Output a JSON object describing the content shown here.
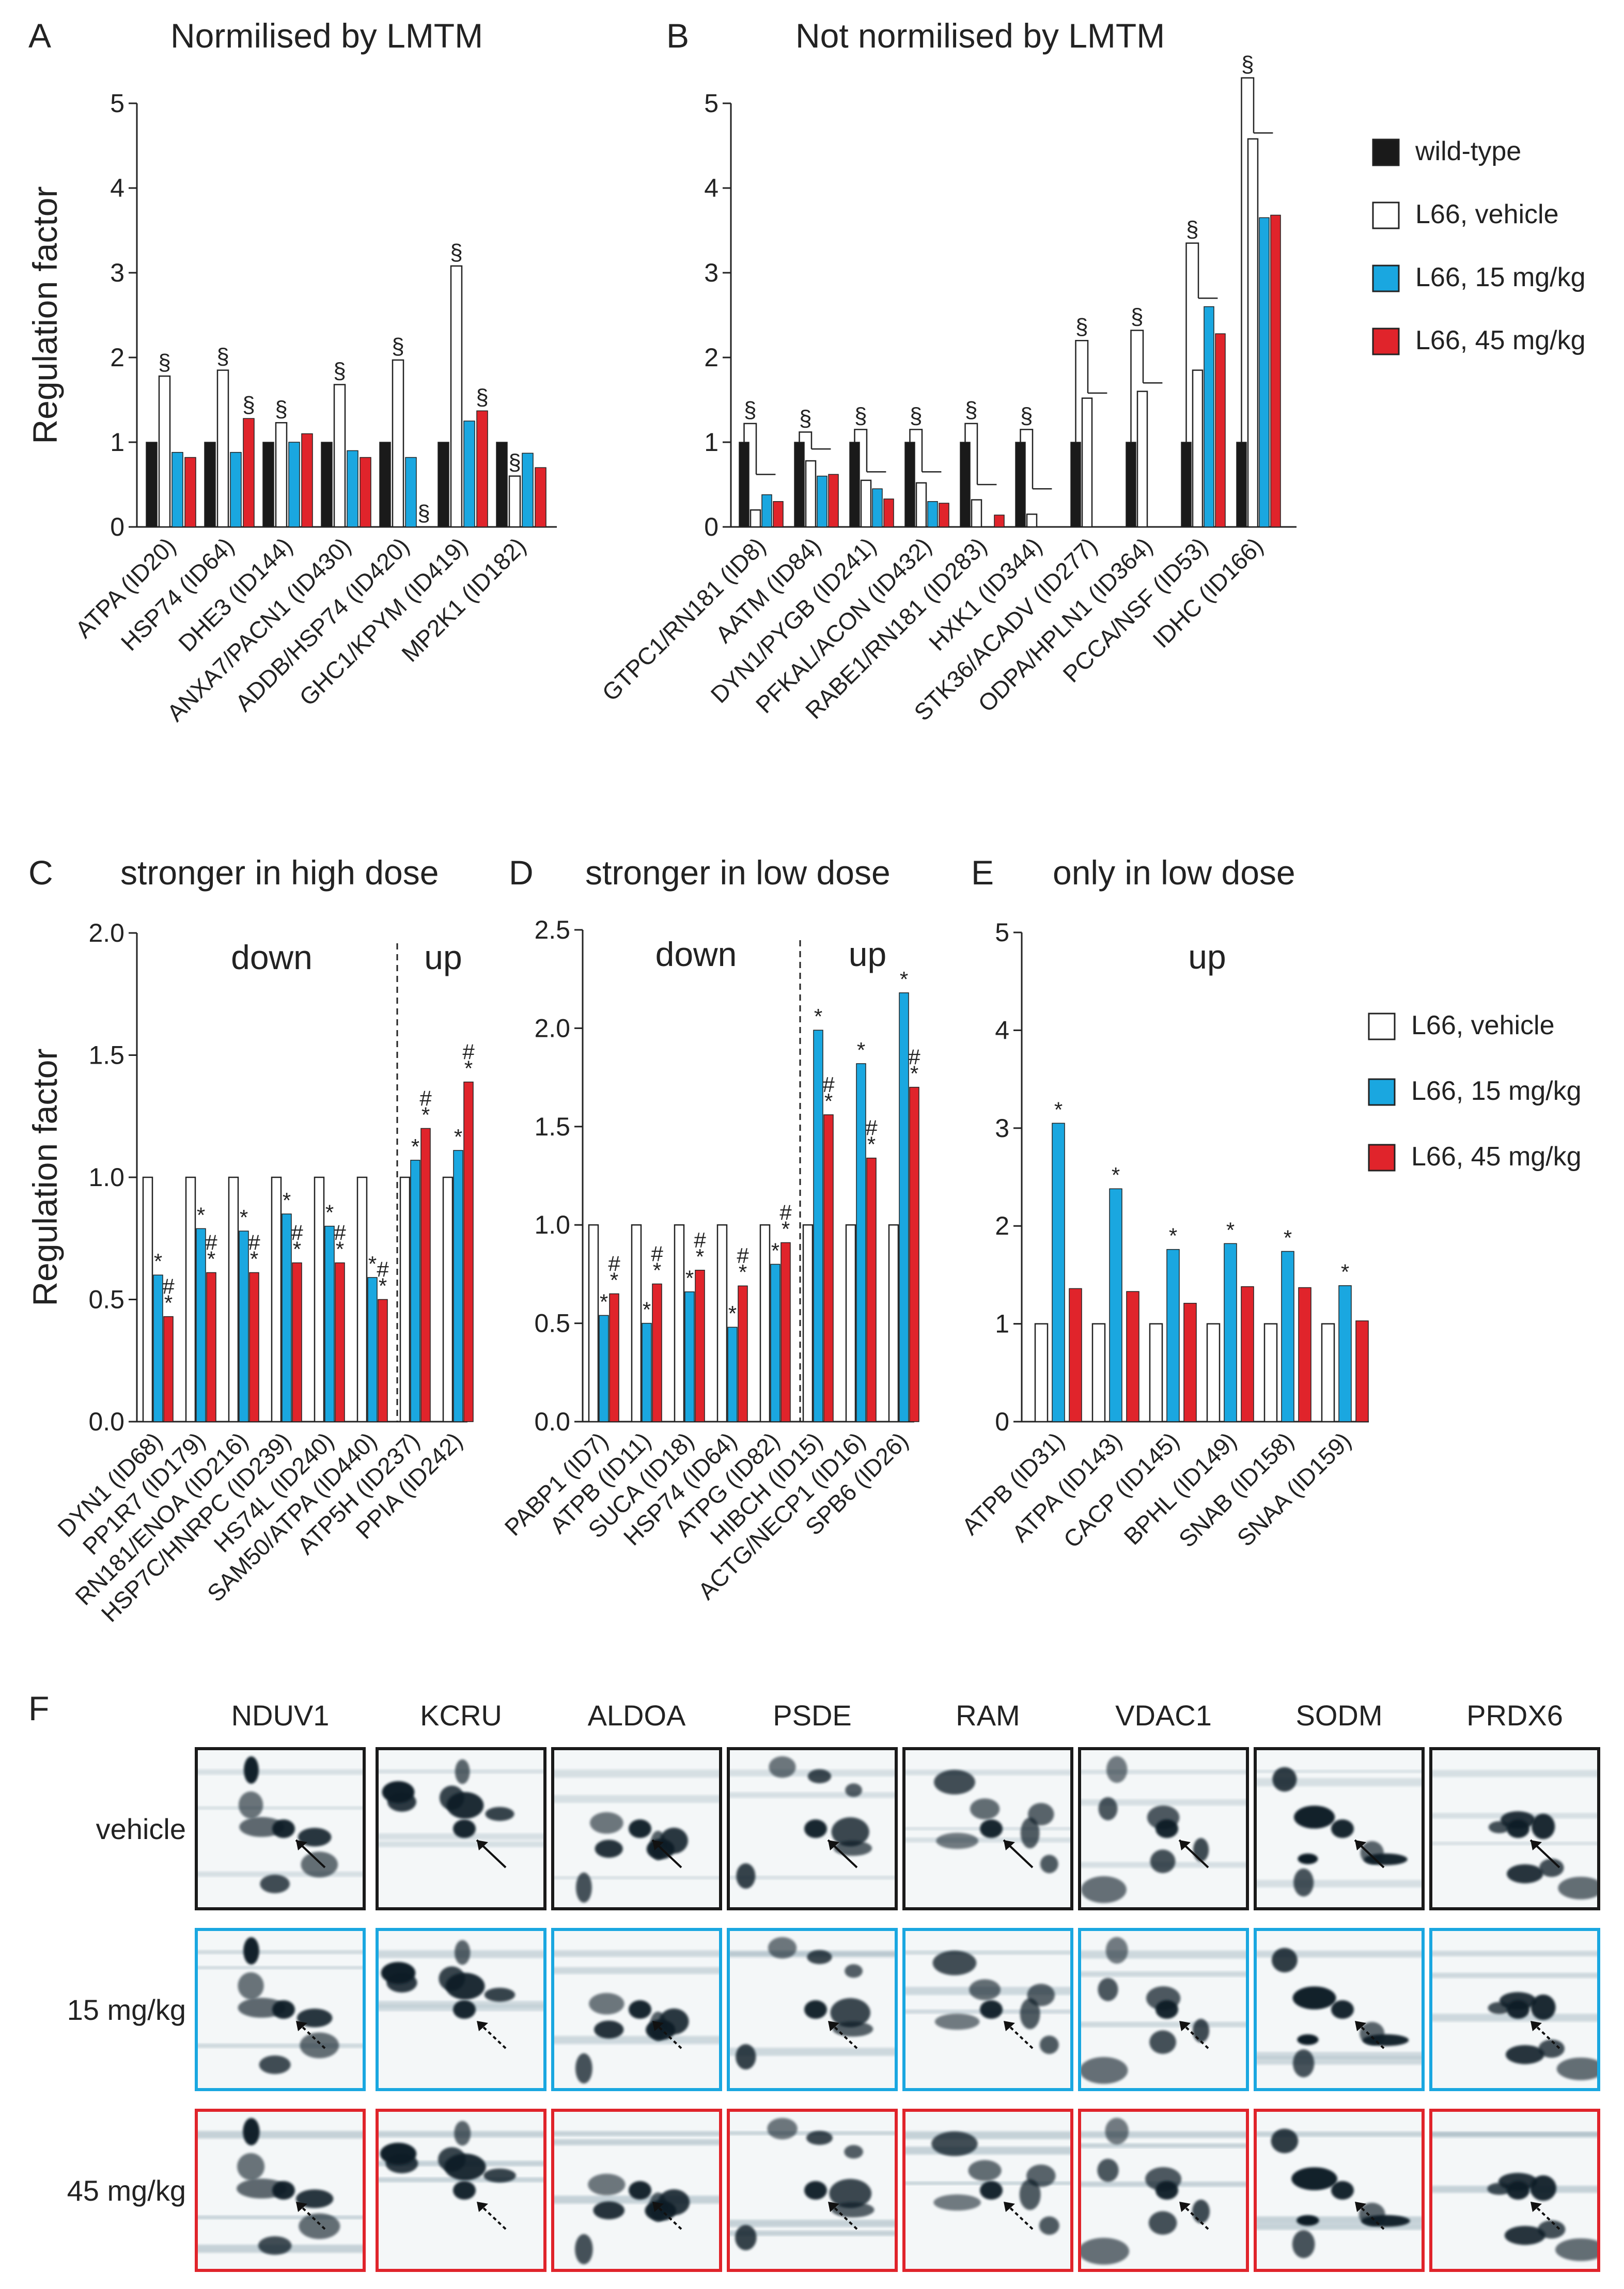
{
  "colors": {
    "wild_type": "#1a1a1a",
    "vehicle": "#ffffff",
    "dose15": "#1aa7e0",
    "dose45": "#e0242b",
    "gel_ink": "#0b1c26"
  },
  "legend_top": [
    {
      "key": "wild_type",
      "label": "wild-type"
    },
    {
      "key": "vehicle",
      "label": "L66, vehicle"
    },
    {
      "key": "dose15",
      "label": "L66, 15 mg/kg"
    },
    {
      "key": "dose45",
      "label": "L66, 45 mg/kg"
    }
  ],
  "legend_mid": [
    {
      "key": "vehicle",
      "label": "L66, vehicle"
    },
    {
      "key": "dose15",
      "label": "L66, 15 mg/kg"
    },
    {
      "key": "dose45",
      "label": "L66, 45 mg/kg"
    }
  ],
  "chart_data": [
    {
      "id": "A",
      "letter": "A",
      "title": "Normilised by LMTM",
      "type": "bar",
      "ylabel": "Regulation factor",
      "ylim": [
        0,
        5
      ],
      "yticks": [
        "0",
        "1",
        "2",
        "3",
        "4",
        "5"
      ],
      "series_keys": [
        "wild_type",
        "vehicle",
        "dose15",
        "dose45"
      ],
      "series_names": [
        "wild-type",
        "L66, vehicle",
        "L66, 15 mg/kg",
        "L66, 45 mg/kg"
      ],
      "categories": [
        "ATPA (ID20)",
        "HSP74 (ID64)",
        "DHE3 (ID144)",
        "ANXA7/PACN1 (ID430)",
        "ADDB/HSP74 (ID420)",
        "GHC1/KPYM (ID419)",
        "MP2K1 (ID182)"
      ],
      "values": [
        [
          1,
          1.78,
          0.88,
          0.82
        ],
        [
          1,
          1.85,
          0.88,
          1.28
        ],
        [
          1,
          1.23,
          1.0,
          1.1
        ],
        [
          1,
          1.68,
          0.9,
          0.82
        ],
        [
          1,
          1.97,
          0.82,
          null
        ],
        [
          1,
          3.08,
          1.25,
          1.37
        ],
        [
          1,
          0.6,
          0.87,
          0.7
        ]
      ],
      "marks": [
        {
          "c": 0,
          "s": 1,
          "text": "§"
        },
        {
          "c": 1,
          "s": 1,
          "text": "§"
        },
        {
          "c": 1,
          "s": 3,
          "text": "§"
        },
        {
          "c": 2,
          "s": 1,
          "text": "§"
        },
        {
          "c": 3,
          "s": 1,
          "text": "§"
        },
        {
          "c": 4,
          "s": 1,
          "text": "§"
        },
        {
          "c": 4,
          "s": 3,
          "text": "§"
        },
        {
          "c": 5,
          "s": 1,
          "text": "§"
        },
        {
          "c": 5,
          "s": 3,
          "text": "§"
        },
        {
          "c": 6,
          "s": 1,
          "text": "§"
        }
      ],
      "brackets": []
    },
    {
      "id": "B",
      "letter": "B",
      "title": "Not normilised by LMTM",
      "type": "bar",
      "ylabel": "",
      "ylim": [
        0,
        5
      ],
      "yticks": [
        "0",
        "1",
        "2",
        "3",
        "4",
        "5"
      ],
      "series_keys": [
        "wild_type",
        "vehicle",
        "dose15",
        "dose45"
      ],
      "series_names": [
        "wild-type",
        "L66, vehicle",
        "L66, 15 mg/kg",
        "L66, 45 mg/kg"
      ],
      "categories": [
        "GTPC1/RN181 (ID8)",
        "AATM (ID84)",
        "DYN1/PYGB (ID241)",
        "PFKAL/ACON (ID432)",
        "RABE1/RN181 (ID283)",
        "HXK1 (ID344)",
        "STK36/ACADV (ID277)",
        "ODPA/HPLN1 (ID364)",
        "PCCA/NSF (ID53)",
        "IDHC (ID166)"
      ],
      "values": [
        [
          1,
          0.2,
          0.38,
          0.3
        ],
        [
          1,
          0.78,
          0.6,
          0.62
        ],
        [
          1,
          0.55,
          0.45,
          0.33
        ],
        [
          1,
          0.52,
          0.3,
          0.28
        ],
        [
          1,
          0.32,
          null,
          0.14
        ],
        [
          1,
          0.15,
          null,
          null
        ],
        [
          1,
          1.52,
          null,
          null
        ],
        [
          1,
          1.6,
          null,
          null
        ],
        [
          1,
          1.85,
          2.6,
          2.28
        ],
        [
          1,
          4.58,
          3.65,
          3.68
        ]
      ],
      "marks": [],
      "brackets": [
        {
          "c": 0,
          "y1": 1.22,
          "y2": 0.62,
          "text": "§"
        },
        {
          "c": 1,
          "y1": 1.12,
          "y2": 0.92,
          "text": "§"
        },
        {
          "c": 2,
          "y1": 1.15,
          "y2": 0.65,
          "text": "§"
        },
        {
          "c": 3,
          "y1": 1.15,
          "y2": 0.65,
          "text": "§"
        },
        {
          "c": 4,
          "y1": 1.22,
          "y2": 0.5,
          "text": "§"
        },
        {
          "c": 5,
          "y1": 1.15,
          "y2": 0.45,
          "text": "§"
        },
        {
          "c": 6,
          "y1": 2.2,
          "y2": 1.58,
          "text": "§"
        },
        {
          "c": 7,
          "y1": 2.32,
          "y2": 1.7,
          "text": "§"
        },
        {
          "c": 8,
          "y1": 3.35,
          "y2": 2.7,
          "text": "§"
        },
        {
          "c": 9,
          "y1": 5.3,
          "y2": 4.65,
          "text": "§"
        }
      ]
    },
    {
      "id": "C",
      "letter": "C",
      "title": "stronger in high dose",
      "type": "bar",
      "ylabel": "Regulation factor",
      "ylim": [
        0,
        2.0
      ],
      "yticks": [
        "0.0",
        "0.5",
        "1.0",
        "1.5",
        "2.0"
      ],
      "series_keys": [
        "vehicle",
        "dose15",
        "dose45"
      ],
      "series_names": [
        "L66, vehicle",
        "L66, 15 mg/kg",
        "L66, 45 mg/kg"
      ],
      "categories": [
        "DYN1 (ID68)",
        "PP1R7 (ID179)",
        "RN181/ENOA (ID216)",
        "HSP7C/HNRPC (ID239)",
        "HS74L (ID240)",
        "SAM50/ATPA (ID440)",
        "ATP5H (ID237)",
        "PPIA (ID242)"
      ],
      "values": [
        [
          1,
          0.6,
          0.43
        ],
        [
          1,
          0.79,
          0.61
        ],
        [
          1,
          0.78,
          0.61
        ],
        [
          1,
          0.85,
          0.65
        ],
        [
          1,
          0.8,
          0.65
        ],
        [
          1,
          0.59,
          0.5
        ],
        [
          1,
          1.07,
          1.2
        ],
        [
          1,
          1.11,
          1.39
        ]
      ],
      "marks": [
        {
          "c": 0,
          "s": 1,
          "text": "*"
        },
        {
          "c": 0,
          "s": 2,
          "text": "#*"
        },
        {
          "c": 1,
          "s": 1,
          "text": "*"
        },
        {
          "c": 1,
          "s": 2,
          "text": "#*"
        },
        {
          "c": 2,
          "s": 1,
          "text": "*"
        },
        {
          "c": 2,
          "s": 2,
          "text": "#*"
        },
        {
          "c": 3,
          "s": 1,
          "text": "*"
        },
        {
          "c": 3,
          "s": 2,
          "text": "#*"
        },
        {
          "c": 4,
          "s": 1,
          "text": "*"
        },
        {
          "c": 4,
          "s": 2,
          "text": "#*"
        },
        {
          "c": 5,
          "s": 1,
          "text": "*"
        },
        {
          "c": 5,
          "s": 2,
          "text": "#*"
        },
        {
          "c": 6,
          "s": 1,
          "text": "*"
        },
        {
          "c": 6,
          "s": 2,
          "text": "#*"
        },
        {
          "c": 7,
          "s": 1,
          "text": "*"
        },
        {
          "c": 7,
          "s": 2,
          "text": "#*"
        }
      ],
      "brackets": [],
      "regions": [
        {
          "label": "down",
          "from": 0,
          "to": 6
        },
        {
          "label": "up",
          "from": 6,
          "to": 8
        }
      ],
      "divider": 6
    },
    {
      "id": "D",
      "letter": "D",
      "title": "stronger in low dose",
      "type": "bar",
      "ylabel": "",
      "ylim": [
        0,
        2.5
      ],
      "yticks": [
        "0.0",
        "0.5",
        "1.0",
        "1.5",
        "2.0",
        "2.5"
      ],
      "series_keys": [
        "vehicle",
        "dose15",
        "dose45"
      ],
      "series_names": [
        "L66, vehicle",
        "L66, 15 mg/kg",
        "L66, 45 mg/kg"
      ],
      "categories": [
        "PABP1 (ID7)",
        "ATPB (ID11)",
        "SUCA (ID18)",
        "HSP74 (ID64)",
        "ATPG (ID82)",
        "HIBCH (ID15)",
        "ACTG/NECP1 (ID16)",
        "SPB6 (ID26)"
      ],
      "values": [
        [
          1,
          0.54,
          0.65
        ],
        [
          1,
          0.5,
          0.7
        ],
        [
          1,
          0.66,
          0.77
        ],
        [
          1,
          0.48,
          0.69
        ],
        [
          1,
          0.8,
          0.91
        ],
        [
          1,
          1.99,
          1.56
        ],
        [
          1,
          1.82,
          1.34
        ],
        [
          1,
          2.18,
          1.7
        ]
      ],
      "marks": [
        {
          "c": 0,
          "s": 1,
          "text": "*"
        },
        {
          "c": 0,
          "s": 2,
          "text": "#*"
        },
        {
          "c": 1,
          "s": 1,
          "text": "*"
        },
        {
          "c": 1,
          "s": 2,
          "text": "#*"
        },
        {
          "c": 2,
          "s": 1,
          "text": "*"
        },
        {
          "c": 2,
          "s": 2,
          "text": "#*"
        },
        {
          "c": 3,
          "s": 1,
          "text": "*"
        },
        {
          "c": 3,
          "s": 2,
          "text": "#*"
        },
        {
          "c": 4,
          "s": 1,
          "text": "*"
        },
        {
          "c": 4,
          "s": 2,
          "text": "#*"
        },
        {
          "c": 5,
          "s": 1,
          "text": "*"
        },
        {
          "c": 5,
          "s": 2,
          "text": "#*"
        },
        {
          "c": 6,
          "s": 1,
          "text": "*"
        },
        {
          "c": 6,
          "s": 2,
          "text": "#*"
        },
        {
          "c": 7,
          "s": 1,
          "text": "*"
        },
        {
          "c": 7,
          "s": 2,
          "text": "#*"
        }
      ],
      "brackets": [],
      "regions": [
        {
          "label": "down",
          "from": 0,
          "to": 5
        },
        {
          "label": "up",
          "from": 5,
          "to": 8
        }
      ],
      "divider": 5
    },
    {
      "id": "E",
      "letter": "E",
      "title": "only in low dose",
      "type": "bar",
      "ylabel": "",
      "ylim": [
        0,
        5
      ],
      "yticks": [
        "0",
        "1",
        "2",
        "3",
        "4",
        "5"
      ],
      "series_keys": [
        "vehicle",
        "dose15",
        "dose45"
      ],
      "series_names": [
        "L66, vehicle",
        "L66, 15 mg/kg",
        "L66, 45 mg/kg"
      ],
      "categories": [
        "ATPB (ID31)",
        "ATPA (ID143)",
        "CACP (ID145)",
        "BPHL (ID149)",
        "SNAB (ID158)",
        "SNAA (ID159)"
      ],
      "values": [
        [
          1,
          3.05,
          1.36
        ],
        [
          1,
          2.38,
          1.33
        ],
        [
          1,
          1.76,
          1.21
        ],
        [
          1,
          1.82,
          1.38
        ],
        [
          1,
          1.74,
          1.37
        ],
        [
          1,
          1.39,
          1.03
        ]
      ],
      "marks": [
        {
          "c": 0,
          "s": 1,
          "text": "*"
        },
        {
          "c": 1,
          "s": 1,
          "text": "*"
        },
        {
          "c": 2,
          "s": 1,
          "text": "*"
        },
        {
          "c": 3,
          "s": 1,
          "text": "*"
        },
        {
          "c": 4,
          "s": 1,
          "text": "*"
        },
        {
          "c": 5,
          "s": 1,
          "text": "*"
        }
      ],
      "brackets": [],
      "regions": [
        {
          "label": "up",
          "from": 0,
          "to": 6
        }
      ]
    }
  ],
  "panel_f": {
    "letter": "F",
    "proteins": [
      "NDUV1",
      "KCRU",
      "ALDOA",
      "PSDE",
      "RAM",
      "VDAC1",
      "SODM",
      "PRDX6"
    ],
    "rows": [
      {
        "key": "vehicle",
        "label": "vehicle",
        "frame_color": "#1a1a1a",
        "arrow_style": "solid"
      },
      {
        "key": "dose15",
        "label": "15 mg/kg",
        "frame_color": "#1aa7e0",
        "arrow_style": "dotted"
      },
      {
        "key": "dose45",
        "label": "45 mg/kg",
        "frame_color": "#e0242b",
        "arrow_style": "dotted"
      }
    ]
  }
}
